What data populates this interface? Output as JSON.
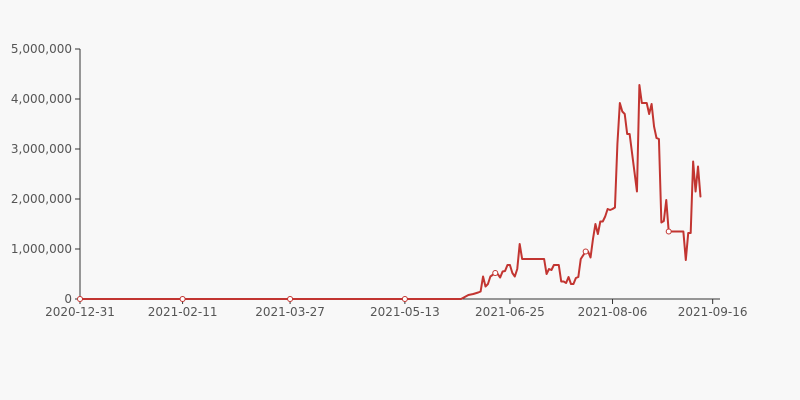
{
  "chart_data": {
    "type": "line",
    "title": "",
    "xlabel": "",
    "ylabel": "",
    "x_range": [
      "2020-12-31",
      "2021-09-19"
    ],
    "ylim": [
      0,
      5000000
    ],
    "grid": false,
    "legend": "none",
    "y_ticks": [
      0,
      1000000,
      2000000,
      3000000,
      4000000,
      5000000
    ],
    "y_tick_labels": [
      "0",
      "1,000,000",
      "2,000,000",
      "3,000,000",
      "4,000,000",
      "5,000,000"
    ],
    "x_ticks": [
      "2020-12-31",
      "2021-02-11",
      "2021-03-27",
      "2021-05-13",
      "2021-06-25",
      "2021-08-06",
      "2021-09-16"
    ],
    "colors": {
      "line": "#c23531",
      "axis": "#333333",
      "background": "#f8f8f8"
    },
    "series": [
      {
        "points": [
          [
            "2020-12-31",
            0
          ],
          [
            "2021-02-11",
            0
          ],
          [
            "2021-03-27",
            0
          ],
          [
            "2021-05-13",
            0
          ],
          [
            "2021-06-05",
            0
          ],
          [
            "2021-06-08",
            80000
          ],
          [
            "2021-06-10",
            100000
          ],
          [
            "2021-06-12",
            130000
          ],
          [
            "2021-06-13",
            150000
          ],
          [
            "2021-06-14",
            450000
          ],
          [
            "2021-06-15",
            250000
          ],
          [
            "2021-06-16",
            300000
          ],
          [
            "2021-06-17",
            450000
          ],
          [
            "2021-06-19",
            520000
          ],
          [
            "2021-06-20",
            500000
          ],
          [
            "2021-06-21",
            430000
          ],
          [
            "2021-06-22",
            550000
          ],
          [
            "2021-06-23",
            560000
          ],
          [
            "2021-06-24",
            680000
          ],
          [
            "2021-06-25",
            680000
          ],
          [
            "2021-06-26",
            520000
          ],
          [
            "2021-06-27",
            450000
          ],
          [
            "2021-06-28",
            600000
          ],
          [
            "2021-06-29",
            1100000
          ],
          [
            "2021-06-30",
            800000
          ],
          [
            "2021-07-01",
            800000
          ],
          [
            "2021-07-09",
            800000
          ],
          [
            "2021-07-10",
            500000
          ],
          [
            "2021-07-11",
            600000
          ],
          [
            "2021-07-12",
            580000
          ],
          [
            "2021-07-13",
            680000
          ],
          [
            "2021-07-15",
            680000
          ],
          [
            "2021-07-16",
            350000
          ],
          [
            "2021-07-17",
            350000
          ],
          [
            "2021-07-18",
            320000
          ],
          [
            "2021-07-19",
            440000
          ],
          [
            "2021-07-20",
            300000
          ],
          [
            "2021-07-21",
            300000
          ],
          [
            "2021-07-22",
            420000
          ],
          [
            "2021-07-23",
            440000
          ],
          [
            "2021-07-24",
            800000
          ],
          [
            "2021-07-26",
            950000
          ],
          [
            "2021-07-27",
            950000
          ],
          [
            "2021-07-28",
            830000
          ],
          [
            "2021-07-29",
            1200000
          ],
          [
            "2021-07-30",
            1500000
          ],
          [
            "2021-07-31",
            1300000
          ],
          [
            "2021-08-01",
            1550000
          ],
          [
            "2021-08-02",
            1550000
          ],
          [
            "2021-08-03",
            1650000
          ],
          [
            "2021-08-04",
            1800000
          ],
          [
            "2021-08-05",
            1780000
          ],
          [
            "2021-08-06",
            1800000
          ],
          [
            "2021-08-07",
            1830000
          ],
          [
            "2021-08-08",
            3100000
          ],
          [
            "2021-08-09",
            3920000
          ],
          [
            "2021-08-10",
            3750000
          ],
          [
            "2021-08-11",
            3700000
          ],
          [
            "2021-08-12",
            3300000
          ],
          [
            "2021-08-13",
            3300000
          ],
          [
            "2021-08-16",
            2150000
          ],
          [
            "2021-08-17",
            4280000
          ],
          [
            "2021-08-18",
            3920000
          ],
          [
            "2021-08-20",
            3920000
          ],
          [
            "2021-08-21",
            3700000
          ],
          [
            "2021-08-22",
            3900000
          ],
          [
            "2021-08-23",
            3450000
          ],
          [
            "2021-08-24",
            3220000
          ],
          [
            "2021-08-25",
            3200000
          ],
          [
            "2021-08-26",
            1530000
          ],
          [
            "2021-08-27",
            1560000
          ],
          [
            "2021-08-28",
            1980000
          ],
          [
            "2021-08-29",
            1350000
          ],
          [
            "2021-09-04",
            1350000
          ],
          [
            "2021-09-05",
            780000
          ],
          [
            "2021-09-06",
            1320000
          ],
          [
            "2021-09-07",
            1320000
          ],
          [
            "2021-09-08",
            2750000
          ],
          [
            "2021-09-09",
            2150000
          ],
          [
            "2021-09-10",
            2650000
          ],
          [
            "2021-09-11",
            2050000
          ]
        ],
        "markers": [
          [
            "2020-12-31",
            0
          ],
          [
            "2021-02-11",
            0
          ],
          [
            "2021-03-27",
            0
          ],
          [
            "2021-05-13",
            0
          ],
          [
            "2021-06-19",
            520000
          ],
          [
            "2021-07-26",
            950000
          ],
          [
            "2021-08-29",
            1350000
          ]
        ]
      }
    ]
  }
}
